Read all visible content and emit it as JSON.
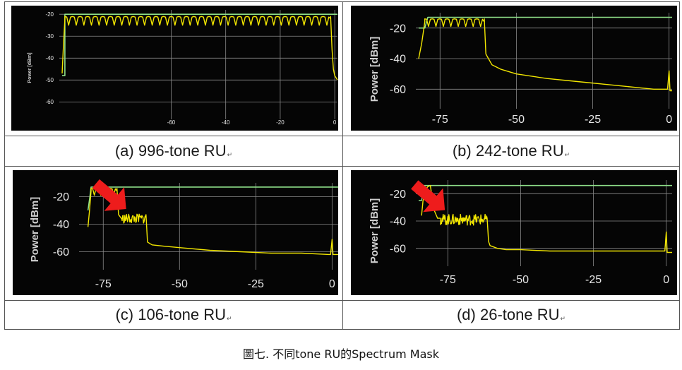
{
  "figure_caption": "圖七. 不同tone RU的Spectrum Mask",
  "colors": {
    "spectrum": "#f2e600",
    "mask": "#8fe08a",
    "grid": "#8a8a8a",
    "background": "#050505",
    "arrow": "#ee1c1c"
  },
  "chart_data": [
    {
      "id": "a",
      "caption": "(a) 996-tone RU",
      "type": "line",
      "ylabel": "Power [dBm]",
      "xlim": [
        -100,
        1
      ],
      "ylim": [
        -66,
        -18
      ],
      "xticks": [
        -60,
        -40,
        -20,
        0
      ],
      "yticks": [
        -20,
        -30,
        -40,
        -50,
        -60
      ],
      "series": [
        {
          "role": "mask",
          "x": [
            -100,
            -99,
            -99,
            1
          ],
          "y": [
            -48,
            -48,
            -20,
            -20
          ]
        },
        {
          "role": "spectrum",
          "x": [
            -100,
            -99.5,
            -99,
            -40.5,
            -40,
            -39.5,
            -1.5,
            -1,
            -0.5,
            0,
            1
          ],
          "y": [
            -47,
            -34,
            -22,
            -22,
            -28,
            -22,
            -22,
            -36,
            -45,
            -48,
            -50
          ]
        }
      ],
      "ripple": {
        "region": [
          -99,
          -1.5
        ],
        "count": 35,
        "top": -21,
        "bottom": -25
      },
      "arrow": false
    },
    {
      "id": "b",
      "caption": "(b) 242-tone RU",
      "type": "line",
      "ylabel": "Power [dBm]",
      "xlim": [
        -82,
        1
      ],
      "ylim": [
        -70,
        -10
      ],
      "xticks": [
        -75,
        -50,
        -25,
        0
      ],
      "yticks": [
        -20,
        -40,
        -60
      ],
      "series": [
        {
          "role": "mask",
          "x": [
            -82,
            -80,
            -79,
            1
          ],
          "y": [
            -20,
            -20,
            -13,
            -13
          ]
        },
        {
          "role": "spectrum",
          "x": [
            -82,
            -81,
            -80,
            -60.5,
            -60,
            -58,
            -55,
            -50,
            -40,
            -30,
            -20,
            -10,
            -5,
            -0.5,
            0,
            0.3,
            1
          ],
          "y": [
            -40,
            -30,
            -16,
            -16,
            -37,
            -44,
            -47,
            -50,
            -53,
            -55,
            -57,
            -59,
            -60,
            -60,
            -48,
            -61,
            -61
          ]
        }
      ],
      "ripple": {
        "region": [
          -80,
          -60.5
        ],
        "count": 8,
        "top": -14,
        "bottom": -19
      },
      "arrow": false
    },
    {
      "id": "c",
      "caption": "(c) 106-tone RU",
      "type": "line",
      "ylabel": "Power [dBm]",
      "xlim": [
        -82,
        2
      ],
      "ylim": [
        -70,
        -10
      ],
      "xticks": [
        -75,
        -50,
        -25,
        0
      ],
      "yticks": [
        -20,
        -40,
        -60
      ],
      "series": [
        {
          "role": "mask",
          "x": [
            -80,
            -79.5,
            -79,
            2
          ],
          "y": [
            -30,
            -22,
            -13,
            -13
          ]
        },
        {
          "role": "spectrum",
          "x": [
            -80,
            -79.5,
            -79,
            -70.5,
            -70,
            -69,
            -62,
            -61,
            -60.5,
            -59,
            -55,
            -50,
            -40,
            -30,
            -20,
            -10,
            -1,
            -0.5,
            0,
            0.3,
            2
          ],
          "y": [
            -42,
            -30,
            -16,
            -16,
            -33,
            -36,
            -36,
            -33,
            -53,
            -55,
            -56,
            -57,
            -59,
            -60,
            -61,
            -61,
            -62,
            -62,
            -51,
            -62,
            -62
          ]
        }
      ],
      "ripple": {
        "region": [
          -79,
          -70.5
        ],
        "count": 4,
        "top": -14,
        "bottom": -19
      },
      "noise": {
        "region": [
          -69,
          -61
        ],
        "center": -36,
        "amplitude": 3.5
      },
      "arrow": true
    },
    {
      "id": "d",
      "caption": "(d) 26-tone RU",
      "type": "line",
      "ylabel": "Power [dBm]",
      "xlim": [
        -85,
        2
      ],
      "ylim": [
        -70,
        -10
      ],
      "xticks": [
        -75,
        -50,
        -25,
        0
      ],
      "yticks": [
        -20,
        -40,
        -60
      ],
      "series": [
        {
          "role": "mask",
          "x": [
            -85,
            -84,
            -83,
            2
          ],
          "y": [
            -25,
            -25,
            -14,
            -14
          ]
        },
        {
          "role": "spectrum",
          "x": [
            -84,
            -83.5,
            -82,
            -81,
            -80.2,
            -79.5,
            -78.5,
            -77.5,
            -61.5,
            -61,
            -60.5,
            -58,
            -55,
            -50,
            -40,
            -30,
            -20,
            -10,
            -1,
            -0.5,
            0,
            0.3,
            2
          ],
          "y": [
            -36,
            -25,
            -15,
            -14,
            -25,
            -33,
            -38,
            -38,
            -38,
            -55,
            -58,
            -60,
            -61,
            -61,
            -62,
            -62,
            -62,
            -62,
            -62,
            -62,
            -48,
            -63,
            -63
          ]
        }
      ],
      "noise": {
        "region": [
          -77.5,
          -61.5
        ],
        "center": -39,
        "amplitude": 4
      },
      "arrow": true
    }
  ]
}
